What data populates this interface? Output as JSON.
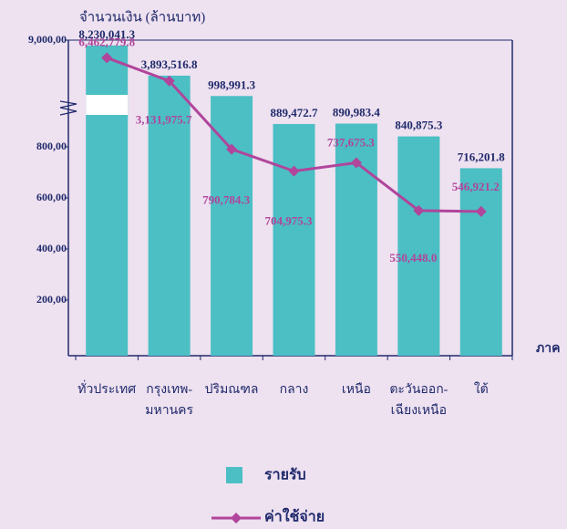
{
  "chart_data": {
    "type": "bar",
    "y_label": "จำนวนเงิน (ล้านบาท)",
    "x_label": "ภาค",
    "categories": [
      [
        "ทั่วประเทศ"
      ],
      [
        "กรุงเทพ-",
        "มหานคร"
      ],
      [
        "ปริมณฑล"
      ],
      [
        "กลาง"
      ],
      [
        "เหนือ"
      ],
      [
        "ตะวันออก-",
        "เฉียงเหนือ"
      ],
      [
        "ใต้"
      ]
    ],
    "series": [
      {
        "name": "รายรับ",
        "type": "bar",
        "color": "#4bbfc4",
        "values": [
          8230041.3,
          3893516.8,
          998991.3,
          889472.7,
          890983.4,
          840875.3,
          716201.8
        ],
        "value_labels": [
          "8,230,041.3",
          "3,893,516.8",
          "998,991.3",
          "889,472.7",
          "890,983.4",
          "840,875.3",
          "716,201.8"
        ]
      },
      {
        "name": "ค่าใช้จ่าย",
        "type": "line",
        "color": "#b0459b",
        "values": [
          6462779.8,
          3131975.7,
          790784.3,
          704975.3,
          737675.3,
          550448.0,
          546921.2
        ],
        "value_labels": [
          "6,462,779.8",
          "3,131,975.7",
          "790,784.3",
          "704,975.3",
          "737,675.3",
          "550,448.0",
          "546,921.2"
        ]
      }
    ],
    "ylim": [
      0,
      9000000
    ],
    "ybreak": 1000000,
    "yticks": [
      {
        "value": 200000,
        "label": "200,00"
      },
      {
        "value": 400000,
        "label": "400,00"
      },
      {
        "value": 600000,
        "label": "600,00"
      },
      {
        "value": 800000,
        "label": "800,00"
      },
      {
        "value": 9000000,
        "label": "9,000,00"
      }
    ]
  }
}
